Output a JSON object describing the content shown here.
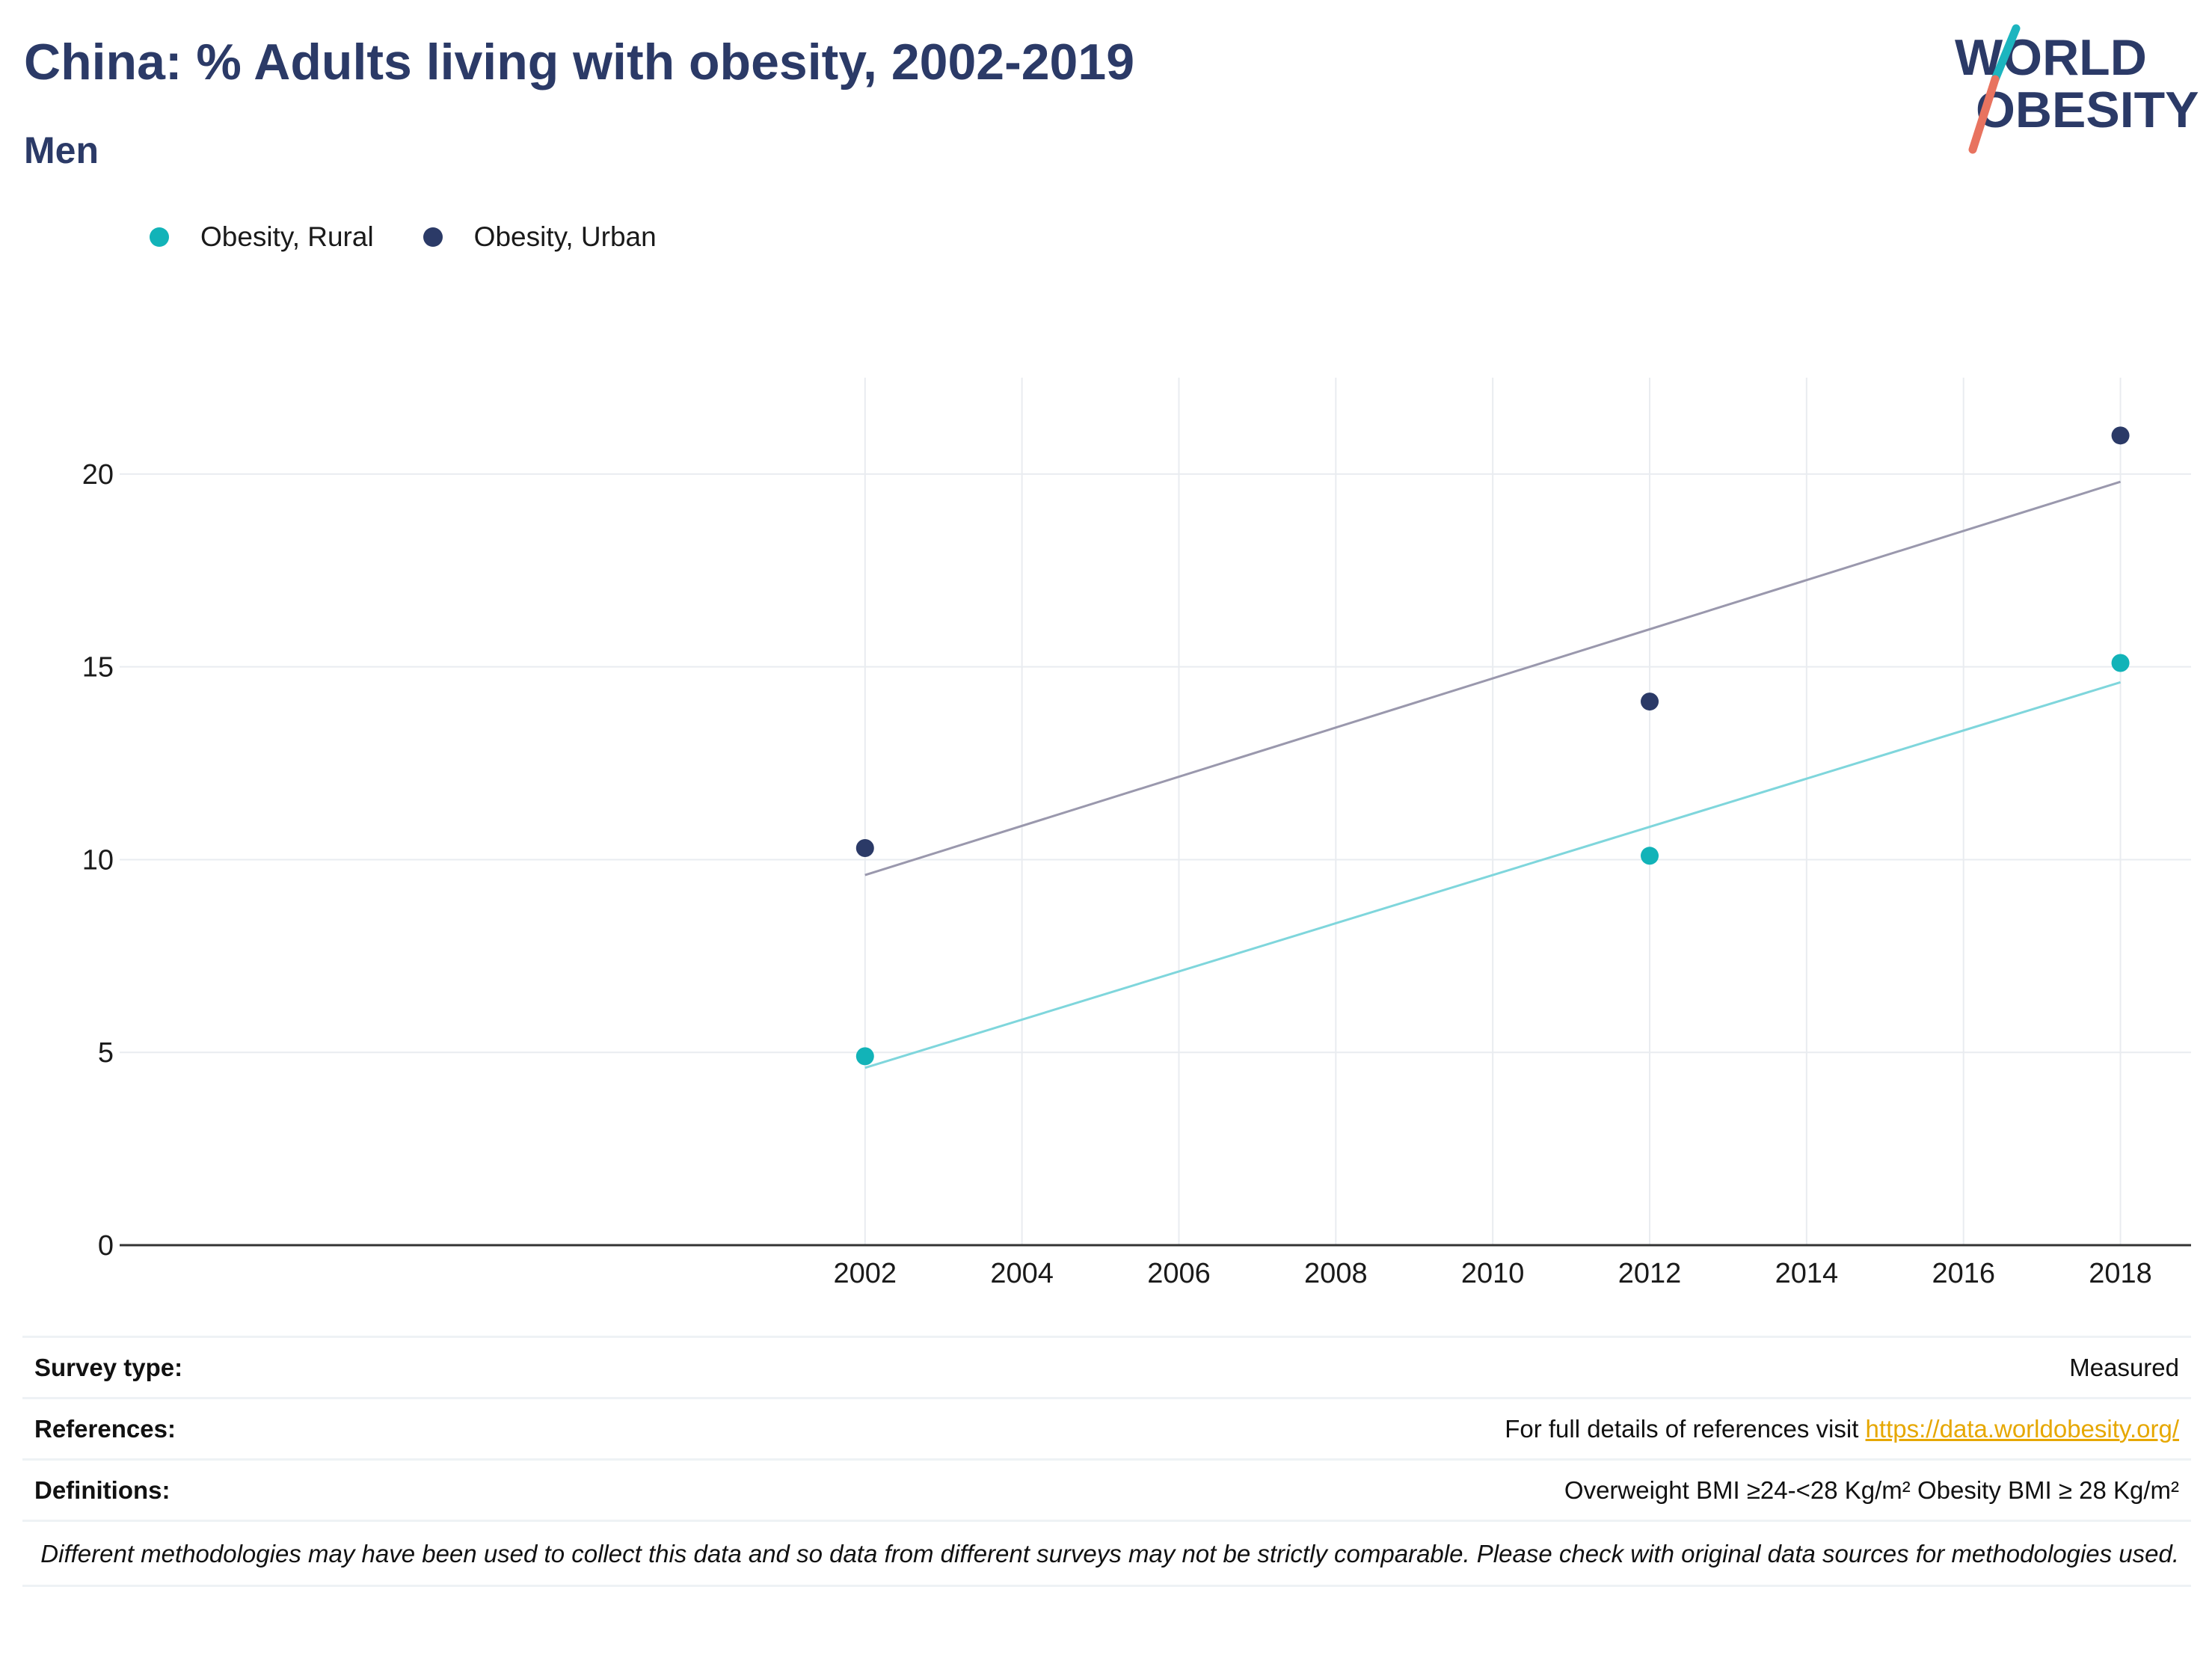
{
  "header": {
    "title": "China: % Adults living with obesity, 2002-2019",
    "subtitle": "Men"
  },
  "logo": {
    "line1": "WORLD",
    "line2": "OBESITY",
    "colors": {
      "text": "#2b3a67",
      "slash_top": "#1cb5bf",
      "slash_bottom": "#e8735f"
    }
  },
  "legend": {
    "items": [
      {
        "label": "Obesity, Rural",
        "color": "#12b3b8"
      },
      {
        "label": "Obesity, Urban",
        "color": "#2b3a67"
      }
    ]
  },
  "chart_data": {
    "type": "scatter",
    "title": "China: % Adults living with obesity, 2002-2019",
    "subtitle": "Men",
    "xlabel": "",
    "ylabel": "",
    "xlim": [
      1992.5,
      2018.9
    ],
    "ylim": [
      0,
      22.5
    ],
    "x_ticks": [
      2002,
      2004,
      2006,
      2008,
      2010,
      2012,
      2014,
      2016,
      2018
    ],
    "y_ticks": [
      0,
      5,
      10,
      15,
      20
    ],
    "grid": true,
    "legend_position": "top-left",
    "series": [
      {
        "name": "Obesity, Rural",
        "color": "#12b3b8",
        "trend_color": "#7fd6dc",
        "points": [
          {
            "x": 2002,
            "y": 4.9
          },
          {
            "x": 2012,
            "y": 10.1
          },
          {
            "x": 2018,
            "y": 15.1
          }
        ],
        "trendline": [
          {
            "x": 2002,
            "y": 4.6
          },
          {
            "x": 2018,
            "y": 14.6
          }
        ]
      },
      {
        "name": "Obesity, Urban",
        "color": "#2b3a67",
        "trend_color": "#9a98ad",
        "points": [
          {
            "x": 2002,
            "y": 10.3
          },
          {
            "x": 2012,
            "y": 14.1
          },
          {
            "x": 2018,
            "y": 21.0
          }
        ],
        "trendline": [
          {
            "x": 2002,
            "y": 9.6
          },
          {
            "x": 2018,
            "y": 19.8
          }
        ]
      }
    ]
  },
  "info": {
    "survey_type_label": "Survey type:",
    "survey_type_value": "Measured",
    "references_label": "References:",
    "references_text": "For full details of references visit ",
    "references_link": "https://data.worldobesity.org/",
    "definitions_label": "Definitions:",
    "definitions_value": "Overweight BMI ≥24-<28 Kg/m² Obesity BMI ≥ 28 Kg/m²",
    "note": "Different methodologies may have been used to collect this data and so data from different surveys may not be strictly comparable. Please check with original data sources for methodologies used."
  }
}
